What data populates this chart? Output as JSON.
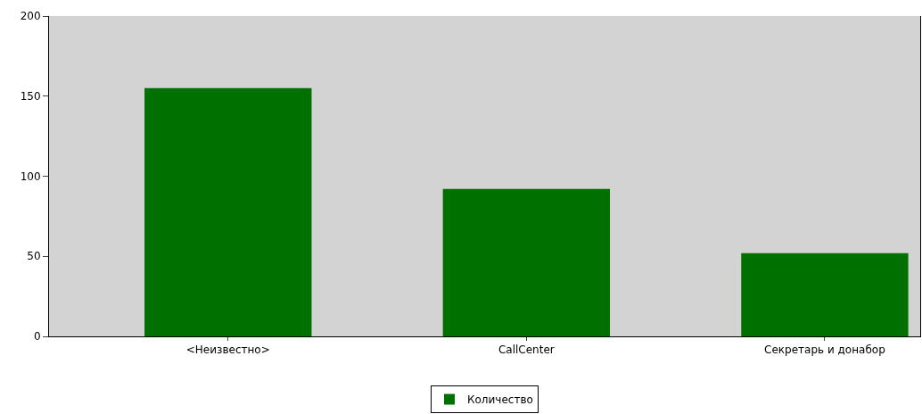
{
  "chart_data": {
    "type": "bar",
    "categories": [
      "<Неизвестно>",
      "CallCenter",
      "Секретарь и донабор"
    ],
    "series": [
      {
        "name": "Количество",
        "color": "#007000",
        "values": [
          155,
          92,
          52
        ]
      }
    ],
    "ylim": [
      0,
      200
    ],
    "yticks": [
      0,
      50,
      100,
      150,
      200
    ],
    "grid": false,
    "legend": "bottom"
  }
}
